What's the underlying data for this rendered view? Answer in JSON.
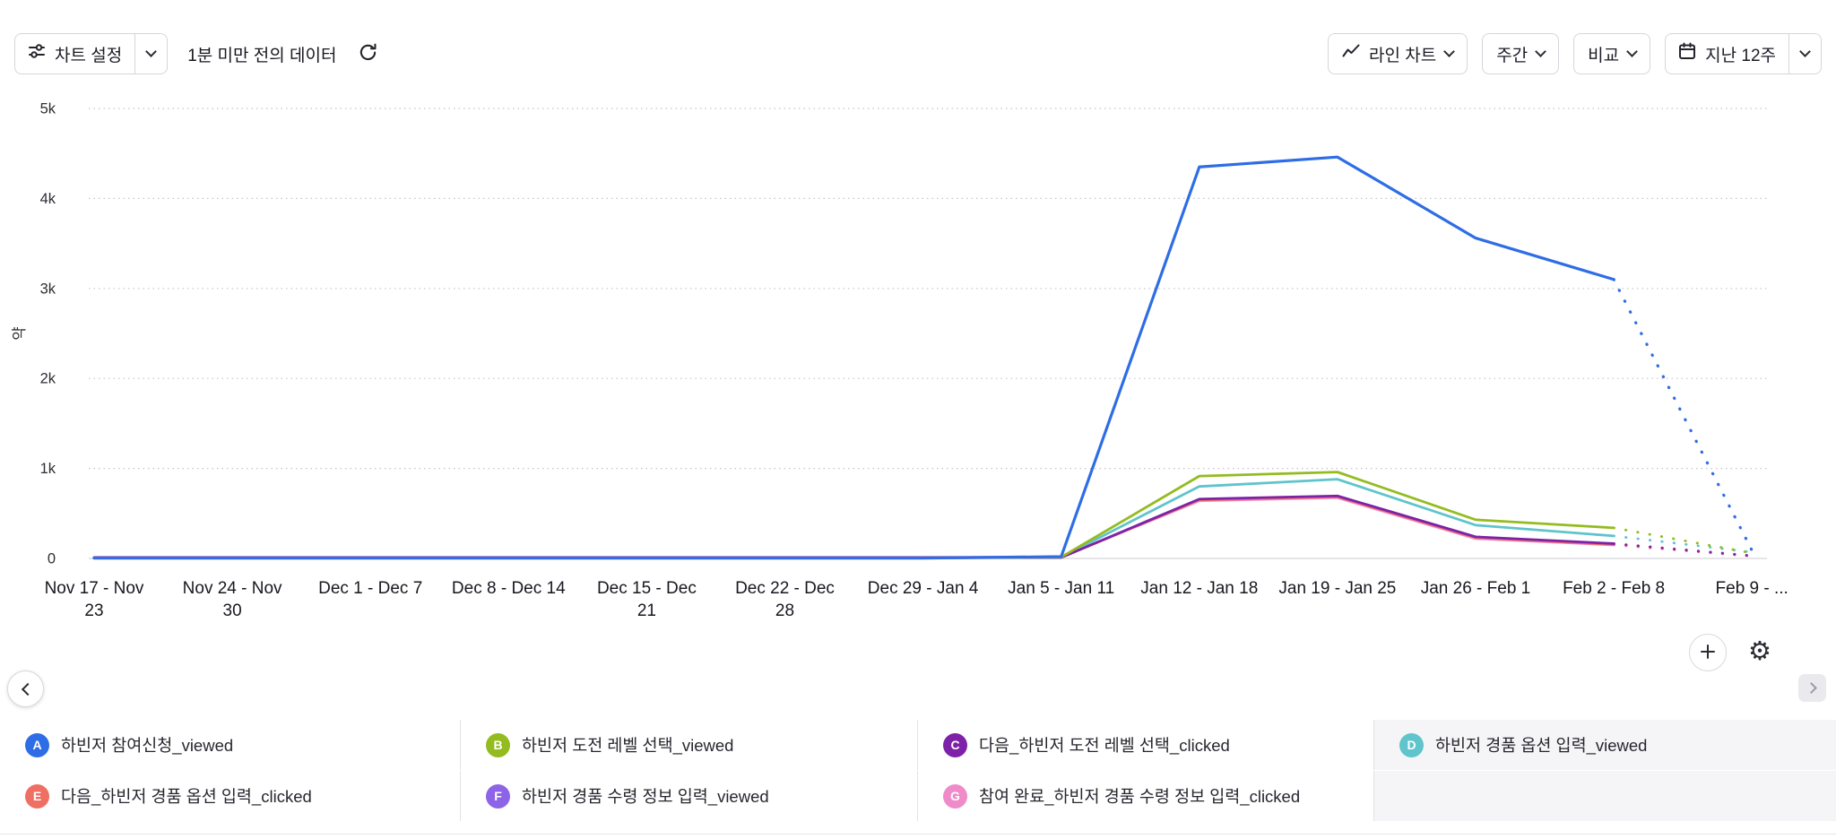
{
  "toolbar": {
    "chart_settings_label": "차트 설정",
    "freshness_text": "1분 미만 전의 데이터",
    "chart_type_label": "라인 차트",
    "granularity_label": "주간",
    "compare_label": "비교",
    "date_range_label": "지난 12주"
  },
  "icons": {
    "chart_settings": "sliders-icon",
    "refresh": "refresh-icon",
    "chart_type": "line-chart-icon",
    "date_range": "calendar-icon",
    "dropdown": "chevron-down-icon",
    "legend_prev": "chevron-left-icon",
    "legend_next": "chevron-right-icon",
    "add": "plus-icon",
    "gear_glyph": "⚙"
  },
  "chart_data": {
    "type": "line",
    "title": "",
    "xlabel": "",
    "ylabel": "약",
    "ylim": [
      0,
      5000
    ],
    "yticks": [
      "0",
      "1k",
      "2k",
      "3k",
      "4k",
      "5k"
    ],
    "ytick_values": [
      0,
      1000,
      2000,
      3000,
      4000,
      5000
    ],
    "grid": "horizontal-dotted",
    "legend_position": "bottom",
    "last_segment_dashed": true,
    "categories": [
      "Nov 17 - Nov 23",
      "Nov 24 - Nov 30",
      "Dec 1 - Dec 7",
      "Dec 8 - Dec 14",
      "Dec 15 - Dec 21",
      "Dec 22 - Dec 28",
      "Dec 29 - Jan 4",
      "Jan 5 - Jan 11",
      "Jan 12 - Jan 18",
      "Jan 19 - Jan 25",
      "Jan 26 - Feb 1",
      "Feb 2 - Feb 8",
      "Feb 9 - ..."
    ],
    "category_label_lines": [
      [
        "Nov 17 - Nov",
        "23"
      ],
      [
        "Nov 24 - Nov",
        "30"
      ],
      [
        "Dec 1 - Dec 7"
      ],
      [
        "Dec 8 - Dec 14"
      ],
      [
        "Dec 15 - Dec",
        "21"
      ],
      [
        "Dec 22 - Dec",
        "28"
      ],
      [
        "Dec 29 - Jan 4"
      ],
      [
        "Jan 5 - Jan 11"
      ],
      [
        "Jan 12 - Jan 18"
      ],
      [
        "Jan 19 - Jan 25"
      ],
      [
        "Jan 26 - Feb 1"
      ],
      [
        "Feb 2 - Feb 8"
      ],
      [
        "Feb 9 - ..."
      ]
    ],
    "series": [
      {
        "id": "A",
        "name": "하빈저 참여신청_viewed",
        "color": "#2e6de5",
        "values": [
          4,
          4,
          4,
          4,
          4,
          4,
          4,
          20,
          4350,
          4460,
          3560,
          3100,
          90
        ]
      },
      {
        "id": "B",
        "name": "하빈저 도전 레벨 선택_viewed",
        "color": "#94bb20",
        "values": [
          6,
          6,
          6,
          6,
          6,
          6,
          6,
          14,
          915,
          960,
          430,
          340,
          60
        ]
      },
      {
        "id": "C",
        "name": "다음_하빈저 도전 레벨 선택_clicked",
        "color": "#7d22a8",
        "values": [
          8,
          8,
          8,
          8,
          8,
          8,
          8,
          10,
          660,
          695,
          240,
          165,
          30
        ]
      },
      {
        "id": "D",
        "name": "하빈저 경품 옵션 입력_viewed",
        "color": "#5fc4cb",
        "values": [
          7,
          7,
          7,
          7,
          7,
          7,
          7,
          12,
          800,
          880,
          370,
          250,
          70
        ]
      },
      {
        "id": "E",
        "name": "다음_하빈저 경품 옵션 입력_clicked",
        "color": "#ef6f63",
        "values": [
          9,
          9,
          9,
          9,
          9,
          9,
          9,
          10,
          650,
          685,
          230,
          155,
          28
        ]
      },
      {
        "id": "F",
        "name": "하빈저 경품 수령 정보 입력_viewed",
        "color": "#8d64e8",
        "values": [
          10,
          10,
          10,
          10,
          10,
          10,
          10,
          11,
          655,
          690,
          235,
          160,
          26
        ]
      },
      {
        "id": "G",
        "name": "참여 완료_하빈저 경품 수령 정보 입력_clicked",
        "color": "#f08bc9",
        "values": [
          14,
          14,
          14,
          14,
          14,
          14,
          14,
          16,
          640,
          675,
          220,
          150,
          24
        ]
      }
    ]
  }
}
